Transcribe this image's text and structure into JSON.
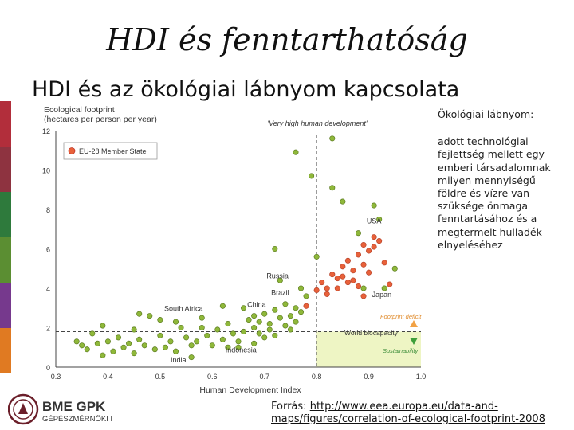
{
  "slide": {
    "title": "HDI és fenntarthatóság",
    "subtitle": "HDI és az ökológiai lábnyom kapcsolata",
    "colors": [
      "#b22e3b",
      "#8e3340",
      "#2e7a3c",
      "#5b8e32",
      "#76398d",
      "#e07a22"
    ]
  },
  "sidebar": {
    "heading": "Ökológiai lábnyom:",
    "text": "adott technológiai fejlettség mellett egy emberi társadalomnak milyen mennyiségű földre és vízre van szüksége önmaga fenntartásához és a megtermelt hulladék elnyeléséhez"
  },
  "source": {
    "label": "Forrás:",
    "url_line1": "http://www.eea.europa.eu/data-and-",
    "url_line2": "maps/figures/correlation-of-ecological-footprint-2008"
  },
  "logo": {
    "name": "BME GPK",
    "subtitle": "GÉPÉSZMÉRNÖKI KAR"
  },
  "chart_data": {
    "type": "scatter",
    "ylabel": "Ecological footprint\n(hectares per person per year)",
    "xlabel": "Human Development Index",
    "xlim": [
      0.3,
      1.0
    ],
    "ylim": [
      0,
      12
    ],
    "xticks": [
      0.3,
      0.4,
      0.5,
      0.6,
      0.7,
      0.8,
      0.9,
      1.0
    ],
    "yticks": [
      0,
      2,
      4,
      6,
      8,
      10,
      12
    ],
    "legend": {
      "label": "EU-28 Member State",
      "position": "top-left"
    },
    "very_high_label": "'Very high human development'",
    "vline_x": 0.8,
    "biocapacity": {
      "y": 1.8,
      "label": "World biocapacity"
    },
    "footprint_deficit_label": "Footprint deficit",
    "sustainability_label": "Sustainability",
    "colors": {
      "other": "#8fb83a",
      "eu": "#e8613a",
      "zone": "#eef5c4",
      "arrow_up": "#f2a246",
      "arrow_down": "#3e9e3a"
    },
    "annotations": [
      {
        "text": "USA",
        "x": 0.91,
        "y": 7.3
      },
      {
        "text": "Russia",
        "x": 0.725,
        "y": 4.5
      },
      {
        "text": "Brazil",
        "x": 0.73,
        "y": 3.65
      },
      {
        "text": "China",
        "x": 0.685,
        "y": 3.05
      },
      {
        "text": "South Africa",
        "x": 0.545,
        "y": 2.85
      },
      {
        "text": "Japan",
        "x": 0.925,
        "y": 3.55
      },
      {
        "text": "Indonesia",
        "x": 0.655,
        "y": 0.75
      },
      {
        "text": "India",
        "x": 0.535,
        "y": 0.25
      }
    ],
    "series": [
      {
        "name": "EU-28 Member State",
        "points": [
          [
            0.78,
            3.1
          ],
          [
            0.8,
            3.9
          ],
          [
            0.81,
            4.3
          ],
          [
            0.82,
            4.0
          ],
          [
            0.83,
            4.7
          ],
          [
            0.84,
            4.5
          ],
          [
            0.85,
            4.6
          ],
          [
            0.86,
            4.3
          ],
          [
            0.86,
            5.4
          ],
          [
            0.87,
            4.9
          ],
          [
            0.88,
            4.1
          ],
          [
            0.88,
            5.7
          ],
          [
            0.89,
            5.2
          ],
          [
            0.89,
            6.2
          ],
          [
            0.9,
            4.8
          ],
          [
            0.9,
            5.9
          ],
          [
            0.91,
            6.1
          ],
          [
            0.91,
            6.6
          ],
          [
            0.87,
            4.4
          ],
          [
            0.84,
            4.0
          ],
          [
            0.92,
            6.4
          ],
          [
            0.93,
            5.3
          ],
          [
            0.94,
            4.2
          ],
          [
            0.89,
            3.6
          ],
          [
            0.82,
            3.7
          ],
          [
            0.85,
            5.1
          ]
        ]
      },
      {
        "name": "",
        "points": [
          [
            0.34,
            1.3
          ],
          [
            0.35,
            1.1
          ],
          [
            0.36,
            0.9
          ],
          [
            0.37,
            1.7
          ],
          [
            0.38,
            1.2
          ],
          [
            0.39,
            0.6
          ],
          [
            0.39,
            2.1
          ],
          [
            0.4,
            1.3
          ],
          [
            0.41,
            0.8
          ],
          [
            0.42,
            1.5
          ],
          [
            0.43,
            1.0
          ],
          [
            0.44,
            1.2
          ],
          [
            0.45,
            0.7
          ],
          [
            0.45,
            1.9
          ],
          [
            0.46,
            1.4
          ],
          [
            0.47,
            1.1
          ],
          [
            0.48,
            2.6
          ],
          [
            0.49,
            0.9
          ],
          [
            0.5,
            1.6
          ],
          [
            0.51,
            1.0
          ],
          [
            0.52,
            1.3
          ],
          [
            0.53,
            0.8
          ],
          [
            0.54,
            2.0
          ],
          [
            0.55,
            1.5
          ],
          [
            0.56,
            1.1
          ],
          [
            0.56,
            0.5
          ],
          [
            0.57,
            1.3
          ],
          [
            0.58,
            2.0
          ],
          [
            0.59,
            1.6
          ],
          [
            0.6,
            1.1
          ],
          [
            0.61,
            1.9
          ],
          [
            0.62,
            1.4
          ],
          [
            0.63,
            1.0
          ],
          [
            0.63,
            2.2
          ],
          [
            0.64,
            1.7
          ],
          [
            0.65,
            1.3
          ],
          [
            0.66,
            1.8
          ],
          [
            0.66,
            3.0
          ],
          [
            0.67,
            2.4
          ],
          [
            0.68,
            2.0
          ],
          [
            0.68,
            1.2
          ],
          [
            0.69,
            1.7
          ],
          [
            0.69,
            2.3
          ],
          [
            0.7,
            1.5
          ],
          [
            0.7,
            2.7
          ],
          [
            0.71,
            1.9
          ],
          [
            0.71,
            2.2
          ],
          [
            0.72,
            2.9
          ],
          [
            0.72,
            1.6
          ],
          [
            0.73,
            2.5
          ],
          [
            0.74,
            2.1
          ],
          [
            0.74,
            3.2
          ],
          [
            0.75,
            2.6
          ],
          [
            0.75,
            1.9
          ],
          [
            0.76,
            3.0
          ],
          [
            0.76,
            2.3
          ],
          [
            0.77,
            2.8
          ],
          [
            0.78,
            3.6
          ],
          [
            0.77,
            4.0
          ],
          [
            0.73,
            4.4
          ],
          [
            0.76,
            10.9
          ],
          [
            0.83,
            11.6
          ],
          [
            0.79,
            9.7
          ],
          [
            0.83,
            9.1
          ],
          [
            0.91,
            8.2
          ],
          [
            0.92,
            7.5
          ],
          [
            0.8,
            5.6
          ],
          [
            0.72,
            6.0
          ],
          [
            0.68,
            2.6
          ],
          [
            0.62,
            3.1
          ],
          [
            0.58,
            2.5
          ],
          [
            0.53,
            2.3
          ],
          [
            0.5,
            2.4
          ],
          [
            0.65,
            1.0
          ],
          [
            0.46,
            2.7
          ],
          [
            0.85,
            8.4
          ],
          [
            0.88,
            6.8
          ],
          [
            0.89,
            4.0
          ],
          [
            0.93,
            4.0
          ],
          [
            0.95,
            5.0
          ]
        ]
      }
    ]
  }
}
